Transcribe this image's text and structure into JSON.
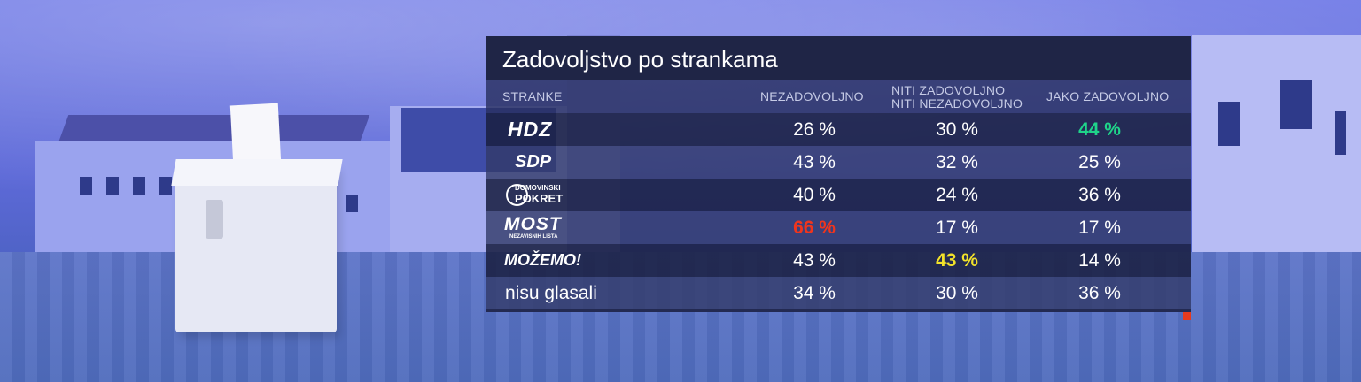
{
  "colors": {
    "panel_title_bg": "#1f2546",
    "highlight_green": "#1fd58a",
    "highlight_red": "#f0351d",
    "highlight_yellow": "#f2e22a",
    "corner_accent": "#e63a1e"
  },
  "chart_data": {
    "type": "table",
    "title": "Zadovoljstvo po strankama",
    "columns": [
      "STRANKE",
      "NEZADOVOLJNO",
      "NITI ZADOVOLJNO NITI NEZADOVOLJNO",
      "JAKO ZADOVOLJNO"
    ],
    "column_lines": {
      "stranke": "STRANKE",
      "nezadovoljno": "NEZADOVOLJNO",
      "niti_line1": "NITI ZADOVOLJNO",
      "niti_line2": "NITI NEZADOVOLJNO",
      "jako": "JAKO ZADOVOLJNO"
    },
    "rows": [
      {
        "party": "HDZ",
        "logo_text": "HDZ",
        "values": [
          "26 %",
          "30 %",
          "44 %"
        ],
        "highlight": [
          null,
          null,
          "green"
        ]
      },
      {
        "party": "SDP",
        "logo_text": "SDP",
        "values": [
          "43 %",
          "32 %",
          "25 %"
        ],
        "highlight": [
          null,
          null,
          null
        ]
      },
      {
        "party": "Domovinski pokret",
        "logo_text": "DOMOVINSKI",
        "logo_text2": "POKRET",
        "values": [
          "40 %",
          "24 %",
          "36 %"
        ],
        "highlight": [
          null,
          null,
          null
        ]
      },
      {
        "party": "MOST",
        "logo_text": "MOST",
        "logo_text2": "NEZAVISNIH LISTA",
        "values": [
          "66 %",
          "17 %",
          "17 %"
        ],
        "highlight": [
          "red",
          null,
          null
        ]
      },
      {
        "party": "Možemo!",
        "logo_text": "MOŽEMO!",
        "values": [
          "43 %",
          "43 %",
          "14 %"
        ],
        "highlight": [
          null,
          "yellow",
          null
        ]
      },
      {
        "party": "nisu glasali",
        "values": [
          "34 %",
          "30 %",
          "36 %"
        ],
        "highlight": [
          null,
          null,
          null
        ]
      }
    ]
  }
}
